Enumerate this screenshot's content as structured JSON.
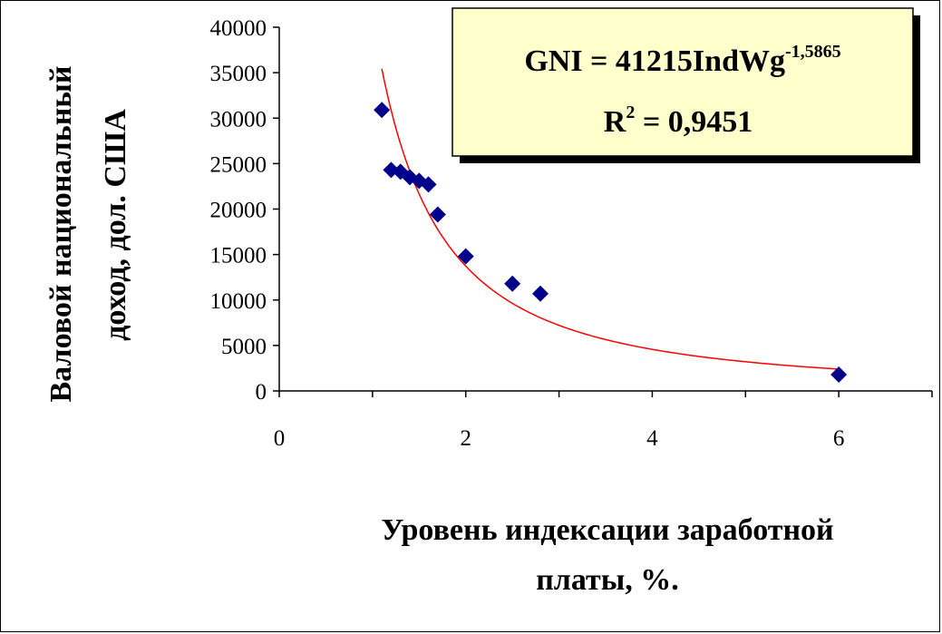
{
  "chart_data": {
    "type": "scatter",
    "title": "",
    "ylabel_line1": "Валовой национальный",
    "ylabel_line2": "доход, дол. США",
    "xlabel_line1": "Уровень индексации заработной",
    "xlabel_line2": "платы, %.",
    "xlim": [
      0,
      7
    ],
    "ylim": [
      0,
      40000
    ],
    "x_ticks": [
      0,
      2,
      4,
      6
    ],
    "y_ticks": [
      0,
      5000,
      10000,
      15000,
      20000,
      25000,
      30000,
      35000,
      40000
    ],
    "x_tick_labels": [
      "0",
      "2",
      "4",
      "6"
    ],
    "y_tick_labels": [
      "0",
      "5000",
      "10000",
      "15000",
      "20000",
      "25000",
      "30000",
      "35000",
      "40000"
    ],
    "grid": false,
    "legend": "none",
    "marker_color": "#00008B",
    "trend_color": "#FF0000",
    "series": [
      {
        "points": [
          [
            1.1,
            30900
          ],
          [
            1.2,
            24300
          ],
          [
            1.3,
            24100
          ],
          [
            1.4,
            23500
          ],
          [
            1.5,
            23100
          ],
          [
            1.6,
            22700
          ],
          [
            1.7,
            19400
          ],
          [
            2.0,
            14800
          ],
          [
            2.5,
            11800
          ],
          [
            2.8,
            10700
          ],
          [
            6.0,
            1800
          ]
        ]
      }
    ],
    "trendline": {
      "type": "power",
      "coefficient": 41215,
      "exponent": -1.5865,
      "x_range": [
        1.1,
        6.0
      ]
    },
    "annotation": {
      "equation_main": "GNI = 41215IndWg",
      "equation_exp": "-1,5865",
      "r2_prefix": "R",
      "r2_sup": "2",
      "r2_value": " = 0,9451",
      "box_fill": "#FFFFCC"
    }
  }
}
